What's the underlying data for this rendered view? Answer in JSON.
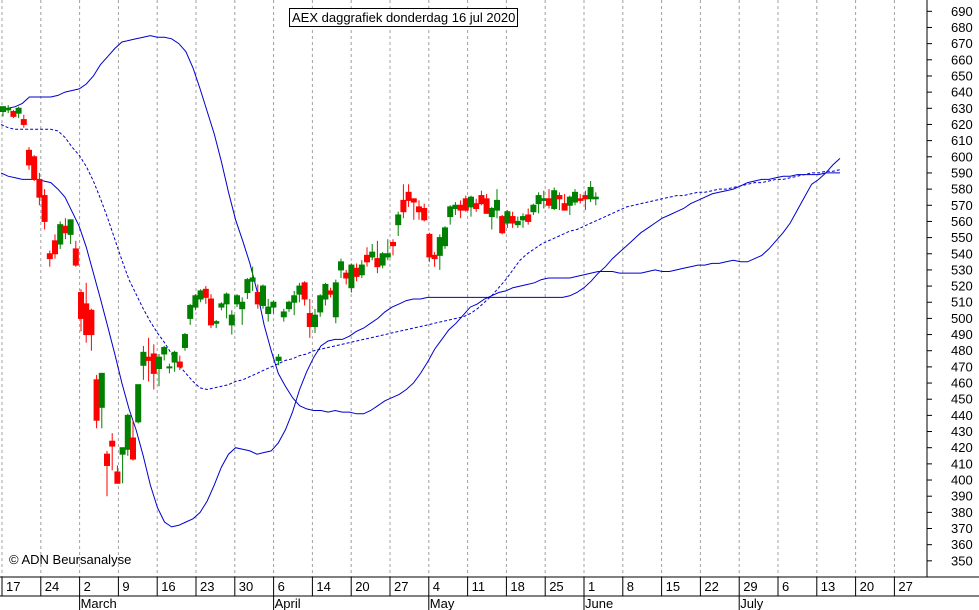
{
  "title": "AEX daggrafiek donderdag 16 jul 2020",
  "copyright": "© ADN Beursanalyse",
  "colors": {
    "up": "#008000",
    "down": "#ff0000",
    "band": "#0000cc",
    "grid": "#a0a0a0",
    "axis": "#000000"
  },
  "chart_data": {
    "type": "candlestick",
    "title": "AEX daggrafiek donderdag 16 jul 2020",
    "ylim": [
      340,
      697
    ],
    "y_ticks": [
      350,
      360,
      370,
      380,
      390,
      400,
      410,
      420,
      430,
      440,
      450,
      460,
      470,
      480,
      490,
      500,
      510,
      520,
      530,
      540,
      550,
      560,
      570,
      580,
      590,
      600,
      610,
      620,
      630,
      640,
      650,
      660,
      670,
      680,
      690
    ],
    "x_tick_labels": [
      "17",
      "24",
      "2",
      "9",
      "16",
      "23",
      "30",
      "6",
      "14",
      "20",
      "27",
      "4",
      "11",
      "18",
      "25",
      "1",
      "8",
      "15",
      "22",
      "29",
      "6",
      "13",
      "20",
      "27"
    ],
    "month_labels": [
      "March",
      "April",
      "May",
      "June",
      "July"
    ],
    "grid": true,
    "legend": "none",
    "series": [
      {
        "type": "candles",
        "ohlc": [
          [
            628,
            631,
            625,
            631
          ],
          [
            629,
            632,
            627,
            630
          ],
          [
            628,
            629,
            624,
            625
          ],
          [
            627,
            631,
            624,
            630
          ],
          [
            623,
            626,
            618,
            620
          ],
          [
            604,
            606,
            592,
            595
          ],
          [
            600,
            601,
            585,
            586
          ],
          [
            586,
            590,
            570,
            575
          ],
          [
            576,
            580,
            555,
            560
          ],
          [
            540,
            542,
            532,
            537
          ],
          [
            548,
            552,
            537,
            540
          ],
          [
            546,
            560,
            543,
            558
          ],
          [
            557,
            562,
            549,
            553
          ],
          [
            552,
            561,
            546,
            561
          ],
          [
            543,
            548,
            532,
            533
          ],
          [
            516,
            518,
            492,
            500
          ],
          [
            509,
            522,
            485,
            490
          ],
          [
            505,
            506,
            480,
            490
          ],
          [
            462,
            465,
            432,
            437
          ],
          [
            445,
            465,
            432,
            466
          ],
          [
            416,
            418,
            390,
            409
          ],
          [
            424,
            429,
            406,
            421
          ],
          [
            405,
            409,
            400,
            398
          ],
          [
            416,
            420,
            398,
            420
          ],
          [
            419,
            441,
            415,
            440
          ],
          [
            426,
            437,
            412,
            413
          ],
          [
            436,
            458,
            435,
            459
          ],
          [
            471,
            483,
            462,
            479
          ],
          [
            476,
            488,
            461,
            474
          ],
          [
            478,
            484,
            456,
            466
          ],
          [
            469,
            478,
            458,
            476
          ],
          [
            478,
            483,
            474,
            482
          ],
          [
            470,
            472,
            466,
            470
          ],
          [
            473,
            480,
            467,
            479
          ],
          [
            473,
            477,
            468,
            470
          ],
          [
            482,
            491,
            480,
            490
          ],
          [
            500,
            509,
            496,
            508
          ],
          [
            507,
            515,
            505,
            514
          ],
          [
            512,
            518,
            510,
            517
          ],
          [
            518,
            520,
            509,
            513
          ],
          [
            512,
            515,
            494,
            496
          ],
          [
            497,
            499,
            494,
            498
          ],
          [
            507,
            510,
            505,
            509
          ],
          [
            509,
            516,
            500,
            515
          ],
          [
            496,
            505,
            490,
            502
          ],
          [
            509,
            515,
            507,
            514
          ],
          [
            506,
            513,
            496,
            510
          ],
          [
            516,
            525,
            512,
            524
          ],
          [
            523,
            532,
            517,
            525
          ],
          [
            516,
            521,
            506,
            509
          ],
          [
            508,
            521,
            506,
            520
          ],
          [
            503,
            512,
            498,
            507
          ],
          [
            507,
            511,
            503,
            510
          ],
          [
            474,
            478,
            471,
            476
          ],
          [
            501,
            506,
            498,
            504
          ],
          [
            506,
            511,
            504,
            510
          ],
          [
            510,
            517,
            502,
            514
          ],
          [
            515,
            522,
            510,
            520
          ],
          [
            522,
            523,
            508,
            512
          ],
          [
            503,
            512,
            488,
            495
          ],
          [
            495,
            506,
            491,
            502
          ],
          [
            504,
            515,
            501,
            514
          ],
          [
            512,
            522,
            508,
            521
          ],
          [
            517,
            519,
            513,
            515
          ],
          [
            501,
            524,
            497,
            522
          ],
          [
            530,
            537,
            525,
            535
          ],
          [
            528,
            530,
            521,
            525
          ],
          [
            519,
            534,
            516,
            533
          ],
          [
            531,
            534,
            523,
            526
          ],
          [
            527,
            536,
            525,
            533
          ],
          [
            539,
            544,
            532,
            535
          ],
          [
            538,
            546,
            536,
            541
          ],
          [
            537,
            548,
            528,
            532
          ],
          [
            533,
            541,
            531,
            540
          ],
          [
            538,
            549,
            536,
            540
          ],
          [
            547,
            549,
            539,
            545
          ],
          [
            558,
            566,
            551,
            564
          ],
          [
            573,
            583,
            562,
            566
          ],
          [
            578,
            583,
            569,
            573
          ],
          [
            574,
            573,
            561,
            572
          ],
          [
            569,
            573,
            561,
            566
          ],
          [
            568,
            571,
            560,
            561
          ],
          [
            552,
            553,
            535,
            538
          ],
          [
            539,
            541,
            532,
            537
          ],
          [
            539,
            552,
            530,
            550
          ],
          [
            545,
            557,
            543,
            556
          ],
          [
            563,
            570,
            558,
            569
          ],
          [
            568,
            572,
            564,
            570
          ],
          [
            570,
            573,
            562,
            567
          ],
          [
            574,
            576,
            566,
            567
          ],
          [
            569,
            576,
            563,
            575
          ],
          [
            571,
            574,
            566,
            568
          ],
          [
            576,
            579,
            570,
            571
          ],
          [
            574,
            577,
            565,
            565
          ],
          [
            563,
            569,
            555,
            568
          ],
          [
            567,
            580,
            562,
            573
          ],
          [
            563,
            564,
            552,
            553
          ],
          [
            559,
            567,
            556,
            566
          ],
          [
            563,
            566,
            556,
            559
          ],
          [
            558,
            563,
            556,
            560
          ],
          [
            561,
            565,
            556,
            563
          ],
          [
            564,
            568,
            558,
            560
          ],
          [
            566,
            571,
            564,
            570
          ],
          [
            571,
            578,
            565,
            576
          ],
          [
            573,
            579,
            568,
            574
          ],
          [
            574,
            580,
            568,
            570
          ],
          [
            568,
            581,
            567,
            579
          ],
          [
            576,
            578,
            567,
            574
          ],
          [
            571,
            577,
            567,
            567
          ],
          [
            570,
            576,
            564,
            575
          ],
          [
            572,
            580,
            570,
            578
          ],
          [
            574,
            577,
            571,
            573
          ],
          [
            576,
            579,
            567,
            574
          ],
          [
            574,
            585,
            572,
            581
          ],
          [
            574,
            578,
            570,
            575
          ]
        ]
      },
      {
        "type": "line",
        "values": [
          629,
          630,
          631,
          633,
          637,
          637,
          637,
          637,
          638,
          640,
          641,
          642,
          645,
          650,
          657,
          662,
          667,
          671,
          672,
          673,
          674,
          675,
          674,
          674,
          673,
          670,
          665,
          655,
          642,
          628,
          614,
          597,
          578,
          561,
          548,
          534,
          517,
          496,
          480,
          466,
          458,
          451,
          446,
          444,
          443,
          443,
          442,
          443,
          442,
          442,
          441,
          441,
          443,
          446,
          449,
          451,
          453,
          456,
          460,
          466,
          473,
          481,
          487,
          493,
          497,
          502,
          507,
          509,
          512,
          514,
          516,
          517,
          519,
          520,
          521,
          522,
          524,
          525,
          525,
          525,
          525,
          526,
          527,
          528,
          529,
          529,
          529,
          528,
          528,
          528,
          528,
          529,
          530,
          529,
          529,
          530,
          531,
          532,
          533,
          533,
          534,
          534,
          535,
          536,
          535,
          535,
          537,
          539,
          543,
          548,
          553,
          559,
          567,
          575,
          583,
          586,
          590,
          595,
          599
        ]
      },
      {
        "type": "line",
        "values": [
          620,
          618,
          617,
          617,
          617,
          617,
          617,
          617,
          616,
          612,
          606,
          601,
          594,
          585,
          574,
          562,
          549,
          536,
          524,
          515,
          506,
          498,
          491,
          485,
          478,
          471,
          466,
          461,
          457,
          456,
          457,
          458,
          459,
          461,
          462,
          464,
          466,
          468,
          470,
          472,
          474,
          475,
          477,
          478,
          480,
          481,
          482,
          483,
          484,
          485,
          486,
          487,
          488,
          489,
          490,
          491,
          492,
          493,
          494,
          495,
          496,
          497,
          498,
          499,
          500,
          501,
          503,
          506,
          510,
          514,
          519,
          524,
          530,
          536,
          540,
          543,
          546,
          548,
          550,
          552,
          554,
          555,
          557,
          559,
          561,
          563,
          565,
          567,
          569,
          570,
          571,
          572,
          573,
          574,
          575,
          576,
          576,
          577,
          578,
          578,
          579,
          580,
          580,
          581,
          582,
          583,
          584,
          584,
          585,
          586,
          586,
          587,
          588,
          589,
          590,
          590,
          591,
          591,
          592
        ]
      },
      {
        "type": "line",
        "values": [
          590,
          588,
          587,
          586,
          586,
          586,
          585,
          584,
          580,
          575,
          566,
          557,
          544,
          528,
          512,
          495,
          478,
          460,
          444,
          431,
          415,
          397,
          383,
          374,
          371,
          372,
          374,
          376,
          380,
          387,
          397,
          408,
          416,
          420,
          419,
          418,
          416,
          417,
          418,
          423,
          431,
          442,
          456,
          467,
          476,
          483,
          486,
          487,
          487,
          489,
          492,
          494,
          497,
          500,
          504,
          507,
          509,
          511,
          512,
          512,
          513,
          513,
          513,
          513,
          513,
          513,
          513,
          513,
          513,
          513,
          513,
          513,
          513,
          513,
          513,
          513,
          513,
          513,
          513,
          513,
          514,
          516,
          519,
          523,
          528,
          532,
          537,
          541,
          545,
          549,
          553,
          556,
          559,
          562,
          564,
          566,
          568,
          571,
          573,
          575,
          577,
          578,
          579,
          580,
          582,
          584,
          585,
          586,
          586,
          587,
          588,
          588,
          589,
          589,
          589,
          589,
          590,
          590,
          590
        ]
      }
    ]
  }
}
